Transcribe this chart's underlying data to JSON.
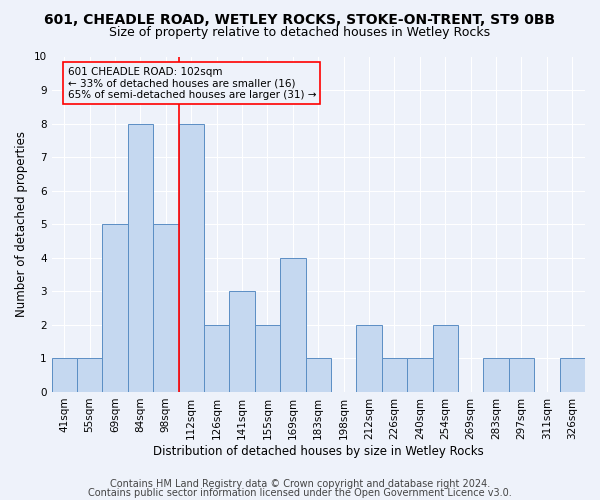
{
  "title_line1": "601, CHEADLE ROAD, WETLEY ROCKS, STOKE-ON-TRENT, ST9 0BB",
  "title_line2": "Size of property relative to detached houses in Wetley Rocks",
  "xlabel": "Distribution of detached houses by size in Wetley Rocks",
  "ylabel": "Number of detached properties",
  "categories": [
    "41sqm",
    "55sqm",
    "69sqm",
    "84sqm",
    "98sqm",
    "112sqm",
    "126sqm",
    "141sqm",
    "155sqm",
    "169sqm",
    "183sqm",
    "198sqm",
    "212sqm",
    "226sqm",
    "240sqm",
    "254sqm",
    "269sqm",
    "283sqm",
    "297sqm",
    "311sqm",
    "326sqm"
  ],
  "values": [
    1,
    1,
    5,
    8,
    5,
    8,
    2,
    3,
    2,
    4,
    1,
    0,
    2,
    1,
    1,
    2,
    0,
    1,
    1,
    0,
    1
  ],
  "bar_color": "#c5d8f0",
  "bar_edge_color": "#5b8ec4",
  "highlight_color": "#ff0000",
  "ylim": [
    0,
    10
  ],
  "yticks": [
    0,
    1,
    2,
    3,
    4,
    5,
    6,
    7,
    8,
    9,
    10
  ],
  "annotation_line1": "601 CHEADLE ROAD: 102sqm",
  "annotation_line2": "← 33% of detached houses are smaller (16)",
  "annotation_line3": "65% of semi-detached houses are larger (31) →",
  "annotation_box_color": "#ff0000",
  "footer_line1": "Contains HM Land Registry data © Crown copyright and database right 2024.",
  "footer_line2": "Contains public sector information licensed under the Open Government Licence v3.0.",
  "bg_color": "#eef2fa",
  "grid_color": "#ffffff",
  "title_fontsize": 10,
  "subtitle_fontsize": 9,
  "axis_label_fontsize": 8.5,
  "tick_fontsize": 7.5,
  "annotation_fontsize": 7.5,
  "footer_fontsize": 7
}
